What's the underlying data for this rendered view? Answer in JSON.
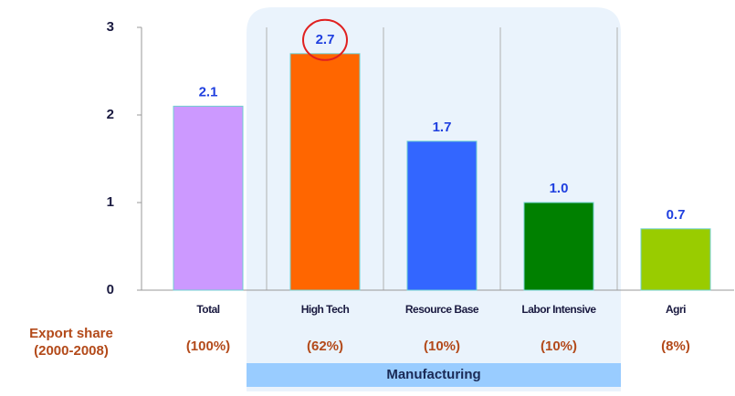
{
  "chart_data": {
    "type": "bar",
    "categories": [
      "Total",
      "High Tech",
      "Resource Base",
      "Labor Intensive",
      "Agri"
    ],
    "values": [
      2.1,
      2.7,
      1.7,
      1.0,
      0.7
    ],
    "value_labels": [
      "2.1",
      "2.7",
      "1.7",
      "1.0",
      "0.7"
    ],
    "colors": [
      "#cc99ff",
      "#ff6600",
      "#3366ff",
      "#008000",
      "#99cc00"
    ],
    "ylim": [
      0,
      3
    ],
    "yticks": [
      0,
      1,
      2,
      3
    ],
    "export_share_label": [
      "Export share",
      "(2000-2008)"
    ],
    "export_shares": [
      "(100%)",
      "(62%)",
      "(10%)",
      "(10%)",
      "(8%)"
    ],
    "group_label": "Manufacturing"
  }
}
